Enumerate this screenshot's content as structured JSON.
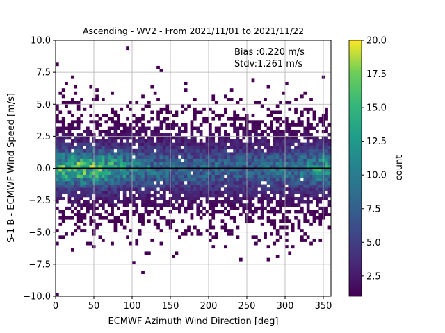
{
  "chart_data": {
    "type": "heatmap",
    "title": "Ascending - WV2 - From 2021/11/01 to 2021/11/22",
    "xlabel": "ECMWF Azimuth Wind Direction [deg]",
    "ylabel": "S-1 B - ECMWF Wind Speed [m/s]",
    "xlim": [
      0,
      360
    ],
    "ylim": [
      -10,
      10
    ],
    "xticks": [
      0,
      50,
      100,
      150,
      200,
      250,
      300,
      350
    ],
    "yticks": [
      -10.0,
      -7.5,
      -5.0,
      -2.5,
      0.0,
      2.5,
      5.0,
      7.5,
      10.0
    ],
    "grid": true,
    "reference_line_y": 0,
    "annotations": [
      "Bias :0.220 m/s",
      "Stdv:1.261 m/s"
    ],
    "colorbar": {
      "label": "count",
      "colormap": "viridis",
      "range": [
        1,
        20
      ],
      "ticks": [
        2.5,
        5.0,
        7.5,
        10.0,
        12.5,
        15.0,
        17.5,
        20.0
      ]
    },
    "bin_size": {
      "x_deg": 4,
      "y_ms": 0.25
    },
    "density_model": {
      "peak_x_deg": 38,
      "peak_y_ms": 0.0,
      "peak_count": 20,
      "core_sigma_y_ms": 0.9,
      "spread_sigma_y_ms": 2.2
    }
  }
}
